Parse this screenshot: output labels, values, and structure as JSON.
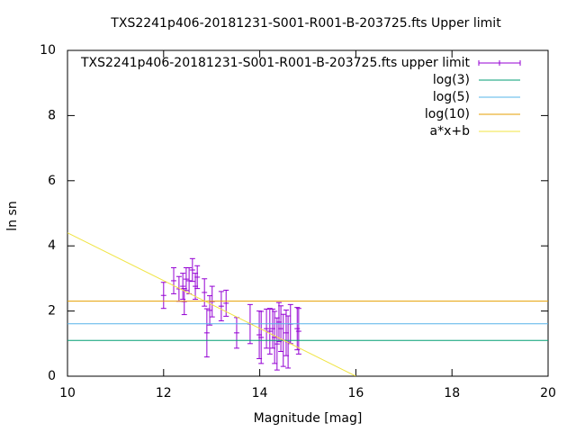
{
  "chart_data": {
    "type": "scatter",
    "title": "TXS2241p406-20181231-S001-R001-B-203725.fts Upper limit",
    "xlabel": "Magnitude [mag]",
    "ylabel": "ln sn",
    "xlim": [
      10,
      20
    ],
    "ylim": [
      0,
      10
    ],
    "xticks": [
      10,
      12,
      14,
      16,
      18,
      20
    ],
    "yticks": [
      0,
      2,
      4,
      6,
      8,
      10
    ],
    "legend": "top right",
    "series": [
      {
        "name": "TXS2241p406-20181231-S001-R001-B-203725.fts upper limit",
        "type": "errorbar",
        "color": "#9400d3",
        "x": [
          12.0,
          12.21,
          12.32,
          12.4,
          12.43,
          12.47,
          12.53,
          12.6,
          12.66,
          12.7,
          12.85,
          12.9,
          12.96,
          13.01,
          13.2,
          13.3,
          13.52,
          13.8,
          13.99,
          14.03,
          14.14,
          14.21,
          14.27,
          14.31,
          14.36,
          14.4,
          14.44,
          14.49,
          14.55,
          14.59,
          14.64,
          14.78,
          14.81
        ],
        "values": [
          2.48,
          2.93,
          2.68,
          2.76,
          2.29,
          2.98,
          2.93,
          3.26,
          2.76,
          3.04,
          2.57,
          1.33,
          2.02,
          2.29,
          2.15,
          2.24,
          1.33,
          1.6,
          1.27,
          1.19,
          1.46,
          1.38,
          1.46,
          1.19,
          0.99,
          1.66,
          1.46,
          1.1,
          1.33,
          1.05,
          1.6,
          1.46,
          1.38
        ],
        "errors": [
          0.4,
          0.4,
          0.38,
          0.4,
          0.4,
          0.35,
          0.4,
          0.35,
          0.4,
          0.35,
          0.42,
          0.74,
          0.45,
          0.47,
          0.45,
          0.4,
          0.47,
          0.6,
          0.73,
          0.8,
          0.6,
          0.7,
          0.6,
          0.8,
          0.8,
          0.6,
          0.7,
          0.8,
          0.7,
          0.8,
          0.6,
          0.65,
          0.7
        ]
      },
      {
        "name": "log(3)",
        "type": "line",
        "color": "#009e73",
        "x": [
          10,
          20
        ],
        "values": [
          1.0986,
          1.0986
        ]
      },
      {
        "name": "log(5)",
        "type": "line",
        "color": "#56b4e9",
        "x": [
          10,
          20
        ],
        "values": [
          1.6094,
          1.6094
        ]
      },
      {
        "name": "log(10)",
        "type": "line",
        "color": "#e69f00",
        "x": [
          10,
          20
        ],
        "values": [
          2.3026,
          2.3026
        ]
      },
      {
        "name": "a*x+b",
        "type": "line",
        "color": "#f0e442",
        "x": [
          10,
          16
        ],
        "values": [
          4.4,
          0
        ]
      }
    ]
  }
}
